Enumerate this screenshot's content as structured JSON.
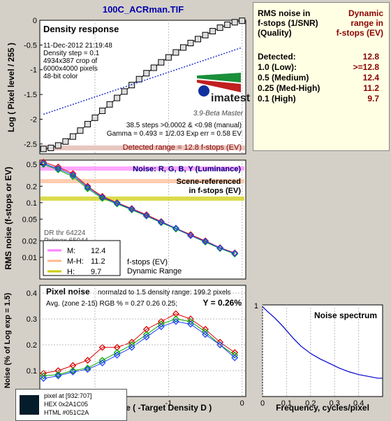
{
  "window_title": "100C_ACRman.TIF",
  "right_panel": {
    "header_left": [
      "RMS noise in",
      "f-stops (1/SNR)",
      "(Quality)"
    ],
    "header_right": [
      "Dynamic",
      "range in",
      "f-stops (EV)"
    ],
    "rows": [
      {
        "label": "Detected:",
        "value": "12.8"
      },
      {
        "label": "1.0  (Low):",
        "value": ">=12.8"
      },
      {
        "label": "0.5  (Medium)",
        "value": "12.4"
      },
      {
        "label": "0.25 (Med-High)",
        "value": "11.2"
      },
      {
        "label": "0.1  (High)",
        "value": "9.7"
      }
    ]
  },
  "colors": {
    "accent_title": "#0000aa",
    "panel_bg": "#ffffe4",
    "dark_red": "#8b0000"
  },
  "chart_data": [
    {
      "type": "line",
      "panel": "density_response",
      "title": "Density response",
      "ylabel": "Log ( Pixel level / 255 )",
      "xlim": [
        -2.75,
        0.05
      ],
      "ylim": [
        -2.7,
        0
      ],
      "yticks": [
        "0",
        "-0.5",
        "-1",
        "-1.5",
        "-2",
        "-2.5"
      ],
      "info_lines": [
        "11-Dec-2012 21:19:48",
        "Density step = 0.1",
        "4934x387 crop of",
        "6000x4000 pixels",
        "48-bit color"
      ],
      "logo_text": "imatest",
      "version_text": "3.9-Beta  Master",
      "stats_lines": [
        "38.5 steps >0.0002 & <0.98 (manual)",
        "Gamma = 0.493 = 1/2.03  Exp err = 0.58 EV"
      ],
      "detected_label": "Detected range = 12.8 f-stops (EV)",
      "series": [
        {
          "values_x": [
            -2.7,
            -2.6,
            -2.5,
            -2.4,
            -2.3,
            -2.2,
            -2.1,
            -2.0,
            -1.9,
            -1.8,
            -1.7,
            -1.6,
            -1.5,
            -1.4,
            -1.3,
            -1.2,
            -1.1,
            -1.0,
            -0.9,
            -0.8,
            -0.7,
            -0.6,
            -0.5,
            -0.4,
            -0.3,
            -0.2,
            -0.1,
            0.0
          ],
          "values_y": [
            -2.6,
            -2.58,
            -2.53,
            -2.45,
            -2.35,
            -2.23,
            -2.1,
            -1.97,
            -1.83,
            -1.7,
            -1.57,
            -1.44,
            -1.31,
            -1.19,
            -1.07,
            -0.96,
            -0.85,
            -0.75,
            -0.65,
            -0.55,
            -0.46,
            -0.38,
            -0.3,
            -0.22,
            -0.15,
            -0.09,
            -0.04,
            -0.01
          ]
        },
        {
          "values_x": [
            -2.7,
            0.0
          ],
          "values_y": [
            -1.9,
            -0.55
          ]
        }
      ]
    },
    {
      "type": "line",
      "panel": "rms_noise",
      "title": "Noise: R, G, B, Y (Luminance)",
      "note_lines": [
        "Scene-referenced",
        "in f-stops (EV)"
      ],
      "ylabel": "RMS noise (f-stops or EV)",
      "yscale": "log",
      "xlim": [
        -2.75,
        0.05
      ],
      "ylim": [
        0.004,
        0.6
      ],
      "yticks": [
        "0.5",
        "0.2",
        "0.1",
        "0.05",
        "0.02",
        "0.01"
      ],
      "overlay_lines": [
        "DR thr 64224",
        "Pxlmax 65044"
      ],
      "legend": [
        {
          "name": "M:",
          "value": "12.4",
          "color": "#ff80ff"
        },
        {
          "name": "M-H:",
          "value": "11.2",
          "color": "#ffb890"
        },
        {
          "name": "H:",
          "value": "9.7",
          "color": "#cccc00"
        }
      ],
      "legend_note": [
        "f-stops (EV)",
        "Dynamic Range"
      ],
      "series": [
        {
          "name": "R",
          "values_x": [
            -2.7,
            -2.5,
            -2.3,
            -2.1,
            -1.9,
            -1.7,
            -1.5,
            -1.3,
            -1.1,
            -0.9,
            -0.7,
            -0.5,
            -0.3,
            -0.1
          ],
          "values_y": [
            0.55,
            0.45,
            0.34,
            0.2,
            0.13,
            0.1,
            0.078,
            0.06,
            0.045,
            0.034,
            0.026,
            0.02,
            0.015,
            0.012
          ]
        },
        {
          "name": "G",
          "values_x": [
            -2.7,
            -2.5,
            -2.3,
            -2.1,
            -1.9,
            -1.7,
            -1.5,
            -1.3,
            -1.1,
            -0.9,
            -0.7,
            -0.5,
            -0.3,
            -0.1
          ],
          "values_y": [
            0.5,
            0.4,
            0.3,
            0.18,
            0.12,
            0.095,
            0.074,
            0.057,
            0.043,
            0.033,
            0.025,
            0.019,
            0.0145,
            0.0115
          ]
        },
        {
          "name": "B",
          "values_x": [
            -2.7,
            -2.5,
            -2.3,
            -2.1,
            -1.9,
            -1.7,
            -1.5,
            -1.3,
            -1.1,
            -0.9,
            -0.7,
            -0.5,
            -0.3,
            -0.1
          ],
          "values_y": [
            0.52,
            0.42,
            0.32,
            0.19,
            0.125,
            0.098,
            0.076,
            0.058,
            0.044,
            0.034,
            0.025,
            0.0195,
            0.0148,
            0.0118
          ]
        }
      ]
    },
    {
      "type": "line",
      "panel": "pixel_noise",
      "title": "Pixel noise",
      "title_note": "normalzd to 1.5 density range: 199.2 pixels",
      "avg_line": "Avg. (zone 2-15) RGB % = 0.27  0.26  0.25;",
      "y_summary": "Y = 0.26%",
      "ylabel": "Noise (% of Log exp = 1.5)",
      "xlabel": "Log Exposure ( -Target Density D )",
      "xlim": [
        -2.75,
        0.05
      ],
      "ylim": [
        0,
        0.43
      ],
      "xticks": [
        "-2",
        "-1",
        "0"
      ],
      "yticks": [
        "0.4",
        "0.3",
        "0.2",
        "0.1"
      ],
      "series": [
        {
          "name": "R",
          "values_x": [
            -2.7,
            -2.5,
            -2.3,
            -2.1,
            -1.9,
            -1.7,
            -1.5,
            -1.3,
            -1.1,
            -0.9,
            -0.7,
            -0.5,
            -0.3,
            -0.1
          ],
          "values_y": [
            0.09,
            0.1,
            0.12,
            0.14,
            0.19,
            0.19,
            0.21,
            0.26,
            0.29,
            0.32,
            0.3,
            0.26,
            0.21,
            0.17
          ]
        },
        {
          "name": "G",
          "values_x": [
            -2.7,
            -2.5,
            -2.3,
            -2.1,
            -1.9,
            -1.7,
            -1.5,
            -1.3,
            -1.1,
            -0.9,
            -0.7,
            -0.5,
            -0.3,
            -0.1
          ],
          "values_y": [
            0.08,
            0.085,
            0.1,
            0.11,
            0.14,
            0.17,
            0.2,
            0.24,
            0.28,
            0.3,
            0.29,
            0.25,
            0.2,
            0.16
          ]
        },
        {
          "name": "B",
          "values_x": [
            -2.7,
            -2.5,
            -2.3,
            -2.1,
            -1.9,
            -1.7,
            -1.5,
            -1.3,
            -1.1,
            -0.9,
            -0.7,
            -0.5,
            -0.3,
            -0.1
          ],
          "values_y": [
            0.07,
            0.08,
            0.095,
            0.105,
            0.13,
            0.16,
            0.19,
            0.23,
            0.27,
            0.29,
            0.28,
            0.24,
            0.2,
            0.15
          ]
        }
      ]
    },
    {
      "type": "line",
      "panel": "noise_spectrum",
      "title": "Noise spectrum",
      "xlabel": "Frequency, cycles/pixel",
      "xlim": [
        0,
        0.5
      ],
      "ylim": [
        0,
        1
      ],
      "xticks": [
        "0",
        "0.1",
        "0.2",
        "0.3",
        "0.4"
      ],
      "series": [
        {
          "values_x": [
            0.0,
            0.02,
            0.05,
            0.08,
            0.1,
            0.13,
            0.16,
            0.2,
            0.24,
            0.28,
            0.32,
            0.36,
            0.4,
            0.44,
            0.48,
            0.5
          ],
          "values_y": [
            0.98,
            0.93,
            0.86,
            0.78,
            0.72,
            0.63,
            0.55,
            0.47,
            0.41,
            0.36,
            0.31,
            0.27,
            0.24,
            0.22,
            0.2,
            0.2
          ]
        }
      ]
    }
  ],
  "pixel_info": {
    "lines": [
      "pixel at [932:707]",
      "HEX 0x2A1C05",
      "HTML #051C2A"
    ],
    "swatch_color": "#051C2A"
  }
}
